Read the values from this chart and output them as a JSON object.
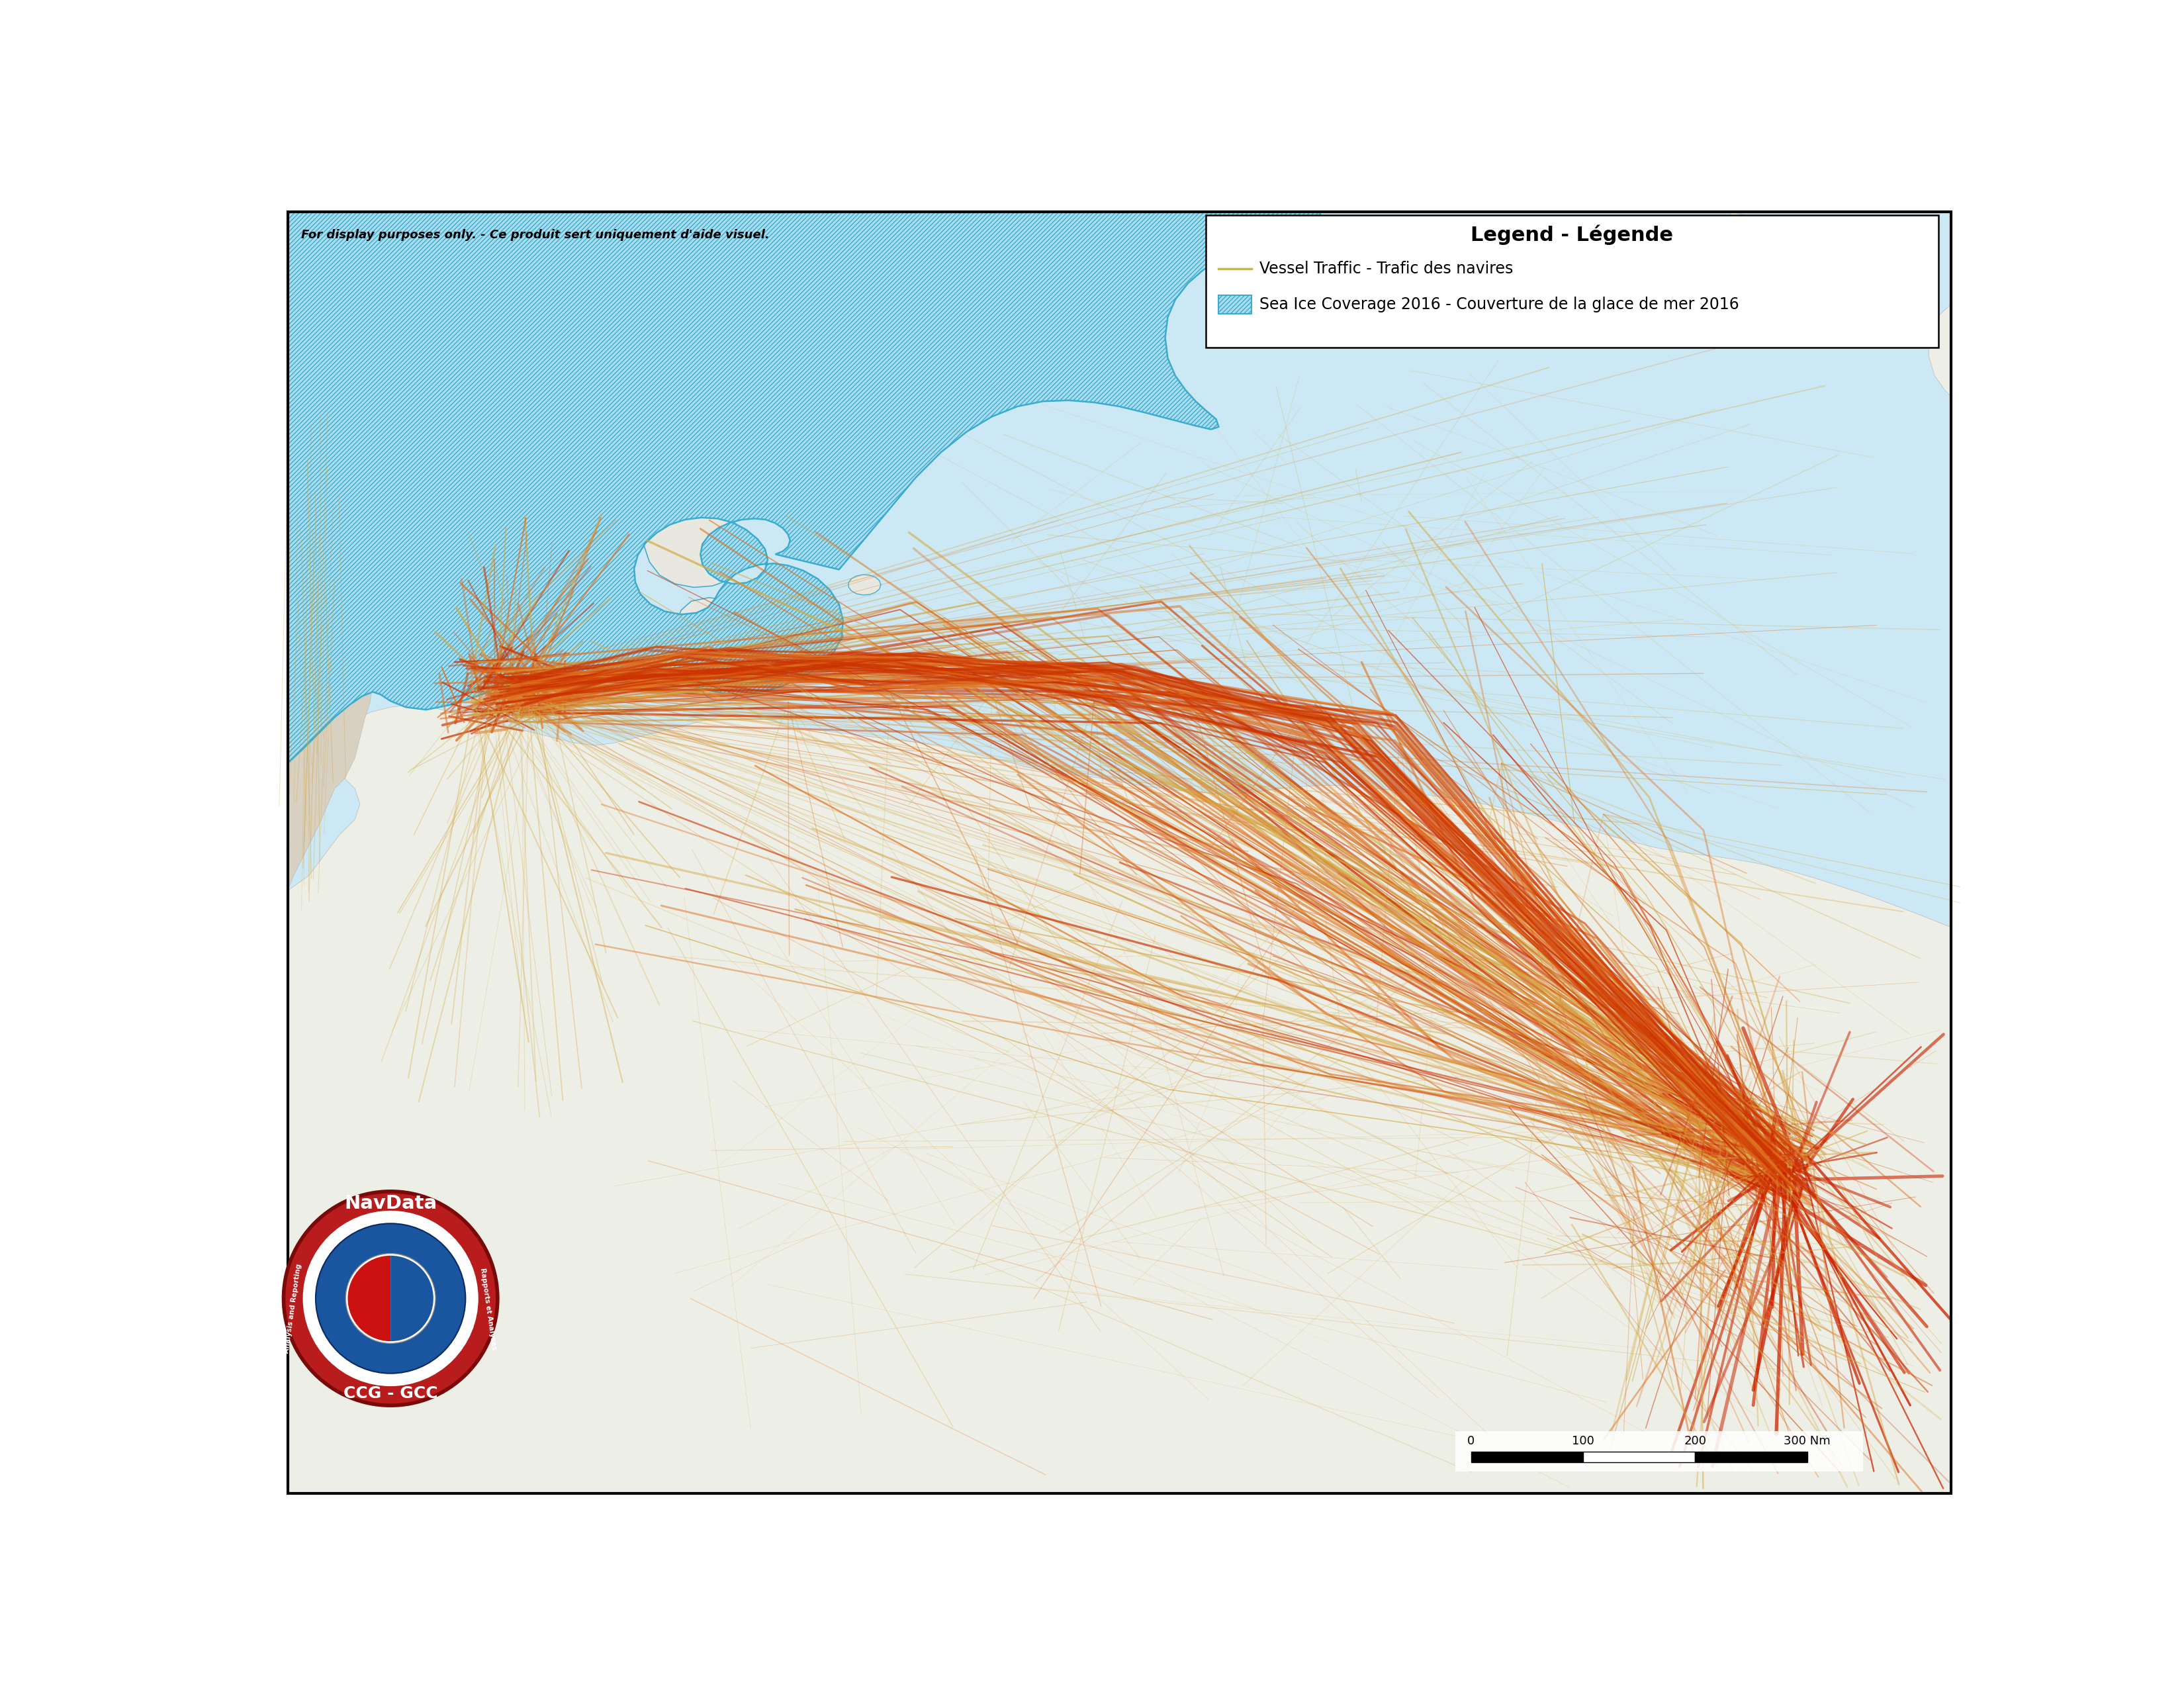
{
  "title": "Legend - Légende",
  "disclaimer": "For display purposes only. - Ce produit sert uniquement d'aide visuel.",
  "legend_vessel": "Vessel Traffic - Trafic des navires",
  "legend_ice": "Sea Ice Coverage 2016 - Couverture de la glace de mer 2016",
  "background_ocean": "#cce8f4",
  "background_land": "#f0efe8",
  "ice_fill_color": "#aadcee",
  "ice_edge_color": "#3aaccf",
  "vessel_color_low": "#d4a843",
  "vessel_color_mid": "#e06820",
  "vessel_color_high": "#cc2200",
  "figure_bg": "#ffffff",
  "map_border_color": "#000000",
  "scalebar_ticks": [
    "0",
    "100",
    "200",
    "300 Nm"
  ],
  "logo_red": "#b81c1c",
  "logo_dark_red": "#7a0a0a"
}
